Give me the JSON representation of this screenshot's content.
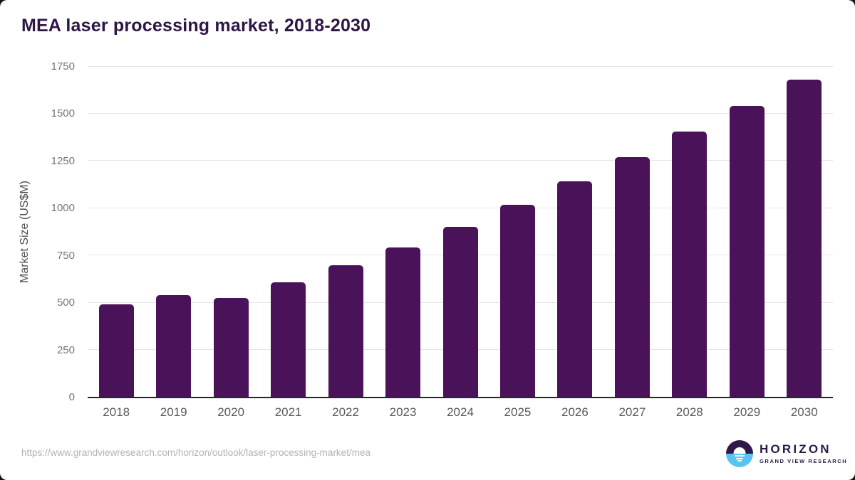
{
  "title": "MEA laser processing market, 2018-2030",
  "source_url": "https://www.grandviewresearch.com/horizon/outlook/laser-processing-market/mea",
  "logo": {
    "brand": "HORIZON",
    "sub_brand": "GRAND VIEW RESEARCH"
  },
  "colors": {
    "bar": "#4a1259",
    "title": "#2d1545",
    "gridline": "#e6e6e6",
    "axis_line": "#262626",
    "y_tick": "#757575",
    "x_tick": "#5a5a5a",
    "url_text": "#b3b3b3",
    "logo_purple": "#2e1a47",
    "logo_blue": "#57c4f1"
  },
  "chart_data": {
    "type": "bar",
    "title": "MEA laser processing market, 2018-2030",
    "categories": [
      "2018",
      "2019",
      "2020",
      "2021",
      "2022",
      "2023",
      "2024",
      "2025",
      "2026",
      "2027",
      "2028",
      "2029",
      "2030"
    ],
    "values": [
      490,
      540,
      525,
      605,
      695,
      790,
      900,
      1015,
      1140,
      1270,
      1405,
      1540,
      1680
    ],
    "xlabel": "",
    "ylabel": "Market Size (US$M)",
    "ylim": [
      0,
      1750
    ],
    "yticks": [
      0,
      250,
      500,
      750,
      1000,
      1250,
      1500,
      1750
    ],
    "grid": true,
    "legend": false,
    "bar_color": "#4a1259"
  }
}
